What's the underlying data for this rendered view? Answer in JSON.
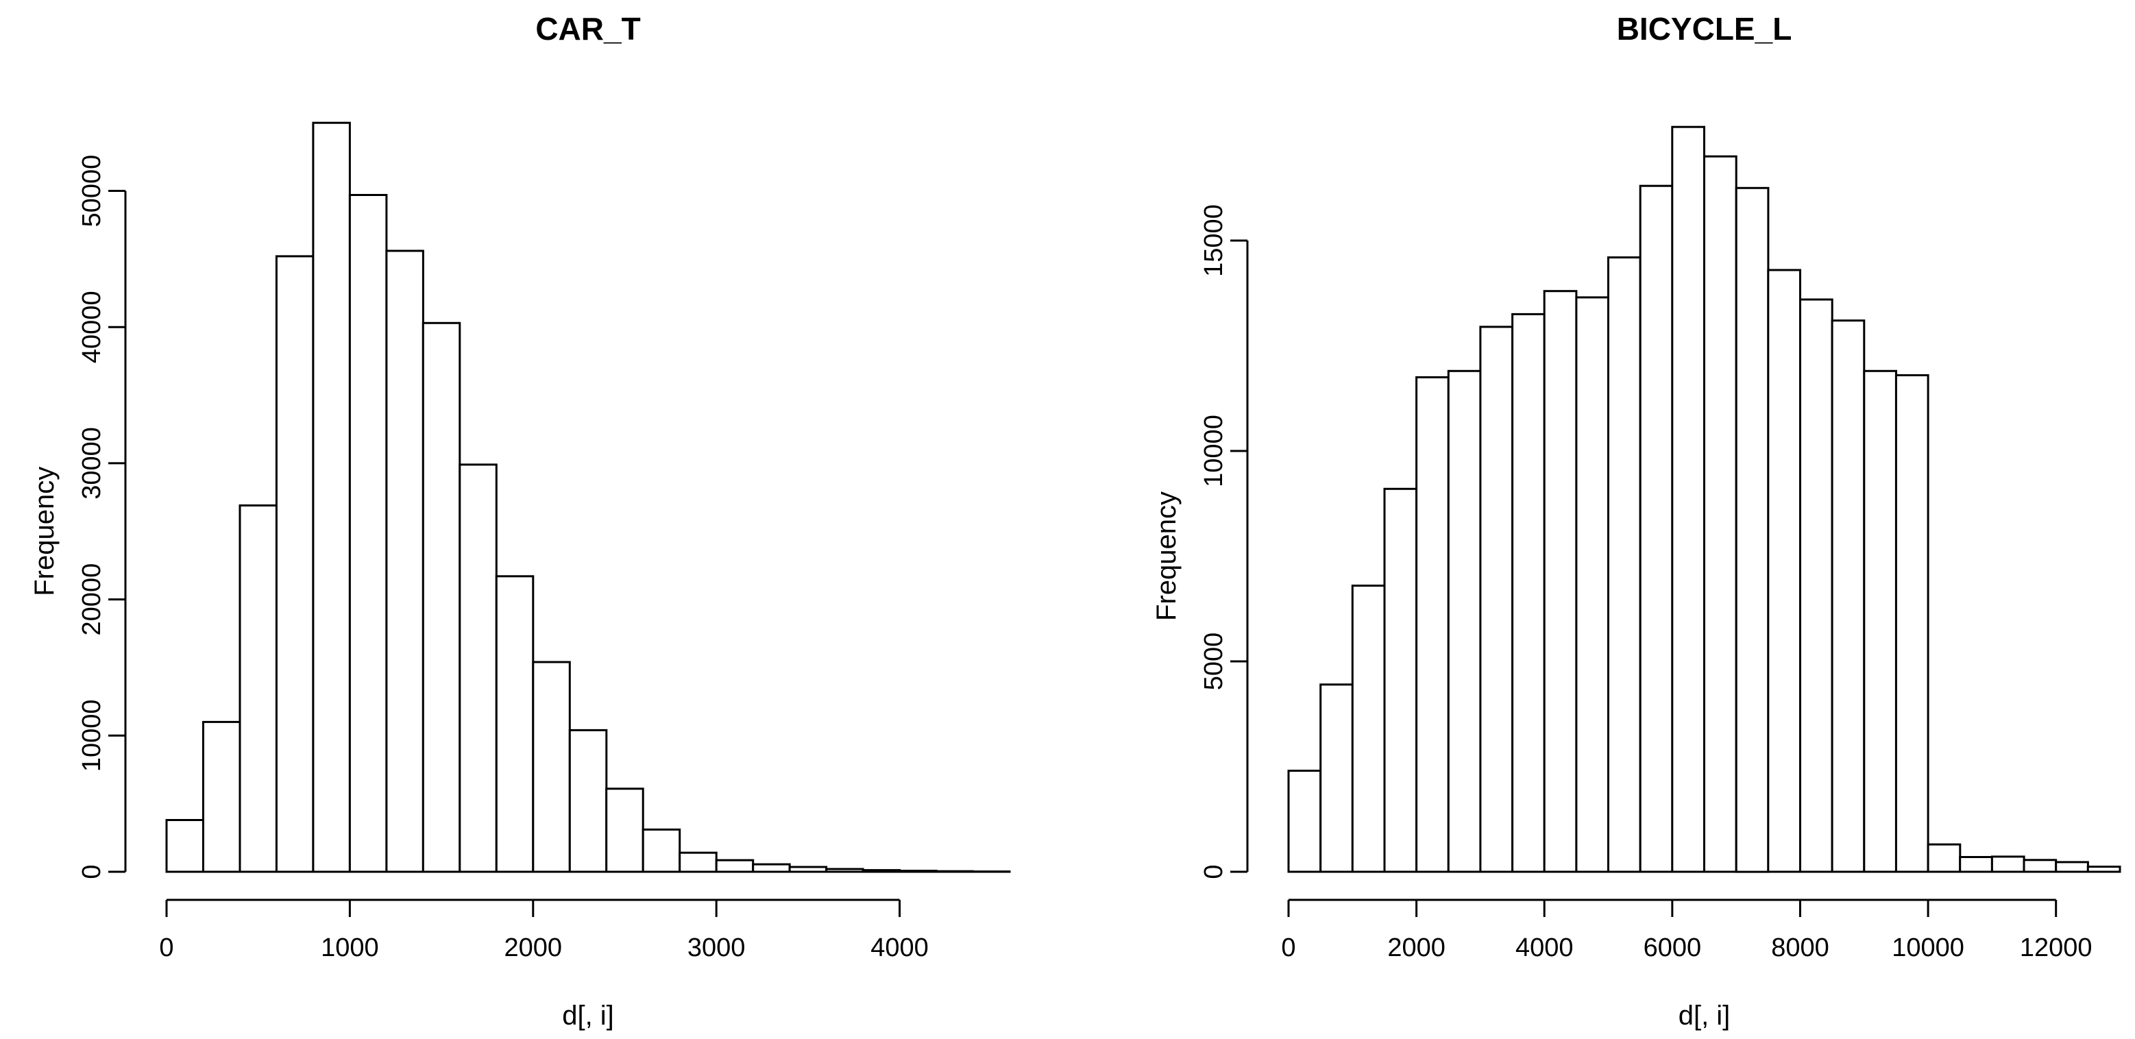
{
  "figure": {
    "background": "#ffffff",
    "line_color": "#000000",
    "bar_fill": "#ffffff"
  },
  "chart_data": [
    {
      "type": "bar",
      "subtype": "histogram",
      "title": "CAR_T",
      "xlabel": "d[, i]",
      "ylabel": "Frequency",
      "bin_start": 0,
      "bin_width": 200,
      "counts": [
        3800,
        11000,
        26900,
        45200,
        55000,
        49700,
        45600,
        40300,
        29900,
        21700,
        15400,
        10400,
        6100,
        3100,
        1400,
        850,
        550,
        350,
        200,
        120,
        70,
        40,
        20
      ],
      "xticks": [
        0,
        1000,
        2000,
        3000,
        4000
      ],
      "yticks": [
        0,
        10000,
        20000,
        30000,
        40000,
        50000
      ],
      "xlim": [
        0,
        4600
      ],
      "ylim": [
        0,
        55000
      ],
      "grid": "off",
      "legend": "none"
    },
    {
      "type": "bar",
      "subtype": "histogram",
      "title": "BICYCLE_L",
      "xlabel": "d[, i]",
      "ylabel": "Frequency",
      "bin_start": 0,
      "bin_width": 500,
      "counts": [
        2400,
        4450,
        6800,
        9100,
        11750,
        11900,
        12950,
        13250,
        13800,
        13650,
        14600,
        16300,
        17700,
        17000,
        16250,
        14300,
        13600,
        13100,
        11900,
        11800,
        650,
        350,
        360,
        280,
        230,
        120
      ],
      "xticks": [
        0,
        2000,
        4000,
        6000,
        8000,
        10000,
        12000
      ],
      "yticks": [
        0,
        5000,
        10000,
        15000
      ],
      "xlim": [
        0,
        13000
      ],
      "ylim": [
        0,
        17700
      ],
      "grid": "off",
      "legend": "none"
    }
  ]
}
